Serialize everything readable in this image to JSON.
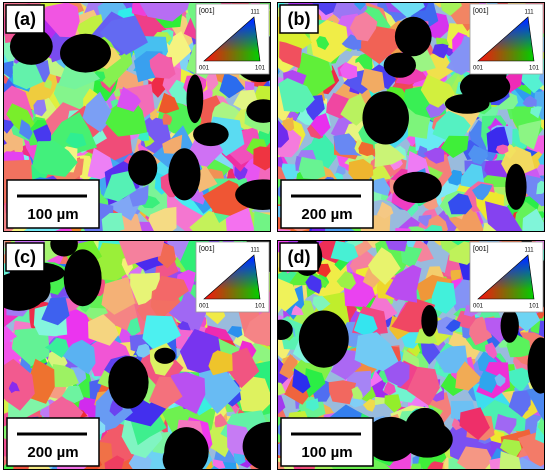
{
  "panels": [
    {
      "label": "(a)",
      "scale_bar": "100 µm",
      "inset": {
        "title": "[001]",
        "top": "111",
        "bottom_left": "001",
        "bottom_right": "101"
      }
    },
    {
      "label": "(b)",
      "scale_bar": "200 µm",
      "inset": {
        "title": "[001]",
        "top": "111",
        "bottom_left": "001",
        "bottom_right": "101"
      }
    },
    {
      "label": "(c)",
      "scale_bar": "200 µm",
      "inset": {
        "title": "[001]",
        "top": "111",
        "bottom_left": "001",
        "bottom_right": "101"
      }
    },
    {
      "label": "(d)",
      "scale_bar": "100 µm",
      "inset": {
        "title": "[001]",
        "top": "111",
        "bottom_left": "001",
        "bottom_right": "101"
      }
    }
  ]
}
